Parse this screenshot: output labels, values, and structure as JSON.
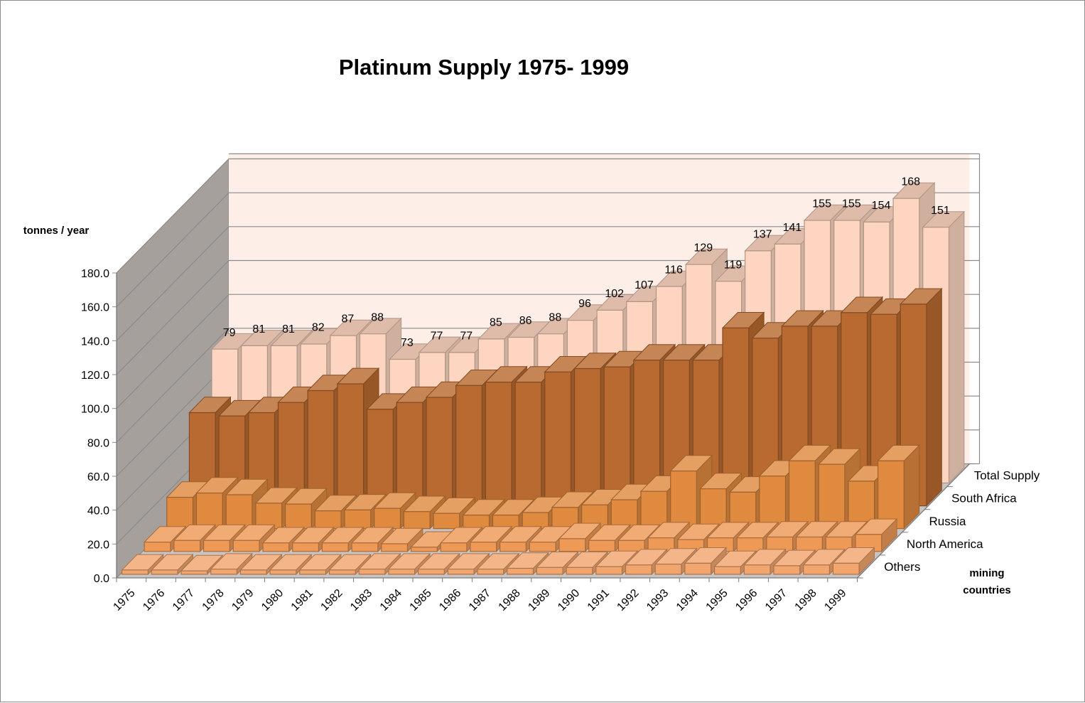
{
  "chart_data": {
    "type": "bar",
    "subtype": "3d-column",
    "title": "Platinum Supply 1975- 1999",
    "ylabel": "tonnes / year",
    "zlabel_line1": "mining",
    "zlabel_line2": "countries",
    "ylim": [
      0,
      180
    ],
    "yticks": [
      "0.0",
      "20.0",
      "40.0",
      "60.0",
      "80.0",
      "100.0",
      "120.0",
      "140.0",
      "160.0",
      "180.0"
    ],
    "categories": [
      "1975",
      "1976",
      "1977",
      "1978",
      "1979",
      "1980",
      "1981",
      "1982",
      "1983",
      "1984",
      "1985",
      "1986",
      "1987",
      "1988",
      "1989",
      "1990",
      "1991",
      "1992",
      "1993",
      "1994",
      "1995",
      "1996",
      "1997",
      "1998",
      "1999"
    ],
    "series": [
      {
        "name": "Others",
        "color": "#f2a66e",
        "values": [
          2.5,
          2.5,
          2,
          3,
          2.5,
          2.5,
          2.5,
          2.5,
          3,
          3,
          3,
          3,
          3,
          3.5,
          4,
          4,
          4.5,
          5.5,
          6,
          6.5,
          4.5,
          5.5,
          5,
          5.5,
          6.5
        ]
      },
      {
        "name": "North America",
        "color": "#ee9955",
        "values": [
          5.5,
          6.5,
          6.5,
          6.5,
          5,
          5,
          5,
          5,
          4.5,
          2.5,
          5,
          5.5,
          5.5,
          5.5,
          7.5,
          6.5,
          6.5,
          8,
          7,
          8,
          8,
          8.5,
          8.5,
          8.5,
          10
        ]
      },
      {
        "name": "Russia",
        "color": "#e08a40",
        "values": [
          18.5,
          21,
          20,
          15,
          14.5,
          10.5,
          11,
          12,
          10,
          9,
          8,
          8,
          9.5,
          12.5,
          14,
          17,
          22,
          34,
          23.5,
          21.5,
          31,
          40,
          38,
          28,
          40
        ]
      },
      {
        "name": "South Africa",
        "color": "#b86a30",
        "values": [
          55,
          53,
          55,
          61,
          68,
          72,
          57,
          61,
          64,
          71,
          73,
          73,
          79,
          81,
          82,
          86,
          86,
          86,
          105,
          99,
          106,
          106,
          114,
          113,
          119
        ]
      },
      {
        "name": "Total Supply",
        "color": "#fdd5c0",
        "values": [
          79,
          81,
          81,
          82,
          87,
          88,
          73,
          77,
          77,
          85,
          86,
          88,
          96,
          102,
          107,
          116,
          129,
          119,
          137,
          141,
          155,
          155,
          154,
          168,
          151
        ],
        "labels": [
          "79",
          "81",
          "81",
          "82",
          "87",
          "88",
          "73",
          "77",
          "77",
          "85",
          "86",
          "88",
          "96",
          "102",
          "107",
          "116",
          "129",
          "119",
          "137",
          "141",
          "155",
          "155",
          "154",
          "168",
          "151"
        ]
      }
    ]
  }
}
